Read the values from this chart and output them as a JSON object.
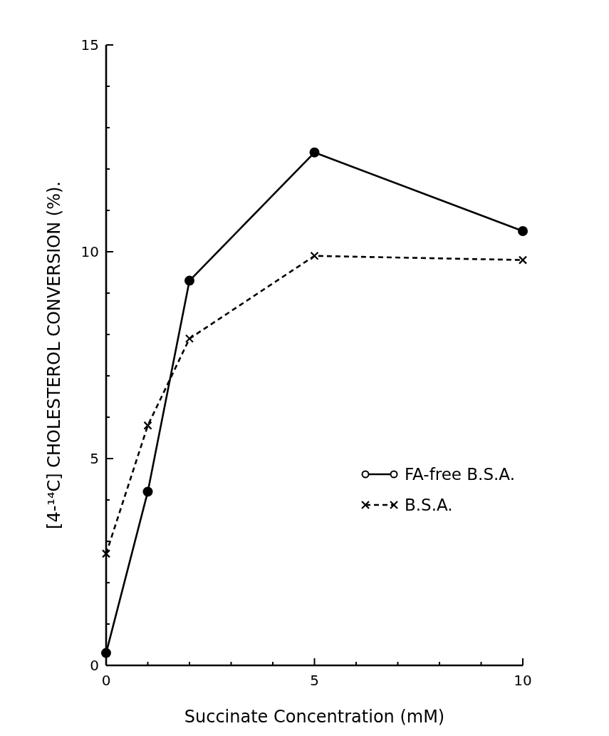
{
  "chart_data": {
    "type": "line",
    "xlabel": "Succinate Concentration (mM)",
    "ylabel": "[4-¹⁴C] CHOLESTEROL  CONVERSION (%).",
    "x": [
      0,
      1,
      2,
      5,
      10
    ],
    "series": [
      {
        "name": "FA-free B.S.A.",
        "color": "#000000",
        "values": [
          0.3,
          4.2,
          9.3,
          12.4,
          10.5
        ],
        "marker": "circle",
        "line_style": "solid"
      },
      {
        "name": "B.S.A.",
        "color": "#000000",
        "values": [
          2.7,
          5.8,
          7.9,
          9.9,
          9.8
        ],
        "marker": "cross",
        "line_style": "dashed"
      }
    ],
    "xlim": [
      0,
      10
    ],
    "xticks": [
      0,
      {
        "value": 1,
        "label": null
      },
      {
        "value": 2,
        "label": null
      },
      {
        "value": 3,
        "label": null
      },
      {
        "value": 4,
        "label": null
      },
      5,
      {
        "value": 6,
        "label": null
      },
      {
        "value": 7,
        "label": null
      },
      {
        "value": 8,
        "label": null
      },
      {
        "value": 9,
        "label": null
      },
      10
    ],
    "ylim": [
      0,
      15
    ],
    "yticks": [
      0,
      {
        "value": 1,
        "label": null
      },
      {
        "value": 2,
        "label": null
      },
      {
        "value": 3,
        "label": null
      },
      {
        "value": 4,
        "label": null
      },
      5,
      {
        "value": 6,
        "label": null
      },
      {
        "value": 7,
        "label": null
      },
      {
        "value": 8,
        "label": null
      },
      {
        "value": 9,
        "label": null
      },
      10,
      {
        "value": 11,
        "label": null
      },
      {
        "value": 12,
        "label": null
      },
      {
        "value": 13,
        "label": null
      },
      {
        "value": 14,
        "label": null
      },
      15
    ],
    "legend": "bottom right",
    "grid": false
  }
}
